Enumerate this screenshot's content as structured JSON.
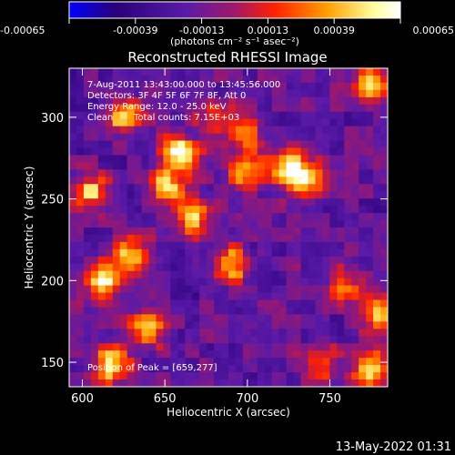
{
  "chart_data": {
    "type": "heatmap",
    "title": "Reconstructed RHESSI Image",
    "xlabel": "Heliocentric X (arcsec)",
    "ylabel": "Heliocentric Y (arcsec)",
    "xlim": [
      592,
      785
    ],
    "ylim": [
      135,
      330
    ],
    "x_ticks": [
      600,
      650,
      700,
      750
    ],
    "y_ticks": [
      150,
      200,
      250,
      300
    ],
    "colorbar": {
      "range": [
        -0.00065,
        0.00065
      ],
      "ticks": [
        "-0.00065",
        "-0.00039",
        "-0.00013",
        "0.00013",
        "0.00039",
        "0.00065"
      ],
      "unit_label": "(photons cm⁻² s⁻¹ asec⁻²)",
      "colormap": [
        "#0000ff",
        "#2a007a",
        "#5a1aa8",
        "#a01868",
        "#ff2000",
        "#ffa000",
        "#ffffa0",
        "#ffffff"
      ]
    },
    "annotations": [
      "7-Aug-2011 13:43:00.000 to 13:45:56.000",
      "Detectors: 3F 4F 5F 6F 7F 8F, Att 0",
      "Energy Range: 12.0 - 25.0 keV",
      "Clean",
      "Total counts: 7.15E+03"
    ],
    "peak_label": "Position of Peak = [659,277]",
    "peak": [
      659,
      277
    ],
    "hot_spots": [
      {
        "x": 659,
        "y": 277,
        "value": 0.00065
      },
      {
        "x": 618,
        "y": 148,
        "value": 0.0006
      },
      {
        "x": 612,
        "y": 198,
        "value": 0.00055
      },
      {
        "x": 630,
        "y": 215,
        "value": 0.0005
      },
      {
        "x": 690,
        "y": 210,
        "value": 0.00048
      },
      {
        "x": 668,
        "y": 240,
        "value": 0.0005
      },
      {
        "x": 650,
        "y": 258,
        "value": 0.00045
      },
      {
        "x": 625,
        "y": 300,
        "value": 0.00042
      },
      {
        "x": 605,
        "y": 255,
        "value": 0.0004
      },
      {
        "x": 640,
        "y": 170,
        "value": 0.00038
      },
      {
        "x": 700,
        "y": 265,
        "value": 0.0004
      },
      {
        "x": 725,
        "y": 270,
        "value": 0.00045
      },
      {
        "x": 735,
        "y": 262,
        "value": 0.0004
      },
      {
        "x": 700,
        "y": 290,
        "value": 0.00025
      },
      {
        "x": 775,
        "y": 320,
        "value": 0.00042
      },
      {
        "x": 780,
        "y": 180,
        "value": 0.00038
      },
      {
        "x": 760,
        "y": 198,
        "value": 0.0003
      },
      {
        "x": 775,
        "y": 145,
        "value": 0.0005
      },
      {
        "x": 745,
        "y": 150,
        "value": 0.0003
      },
      {
        "x": 680,
        "y": 300,
        "value": 0.0002
      }
    ]
  },
  "footer": {
    "timestamp": "13-May-2022 01:31"
  }
}
